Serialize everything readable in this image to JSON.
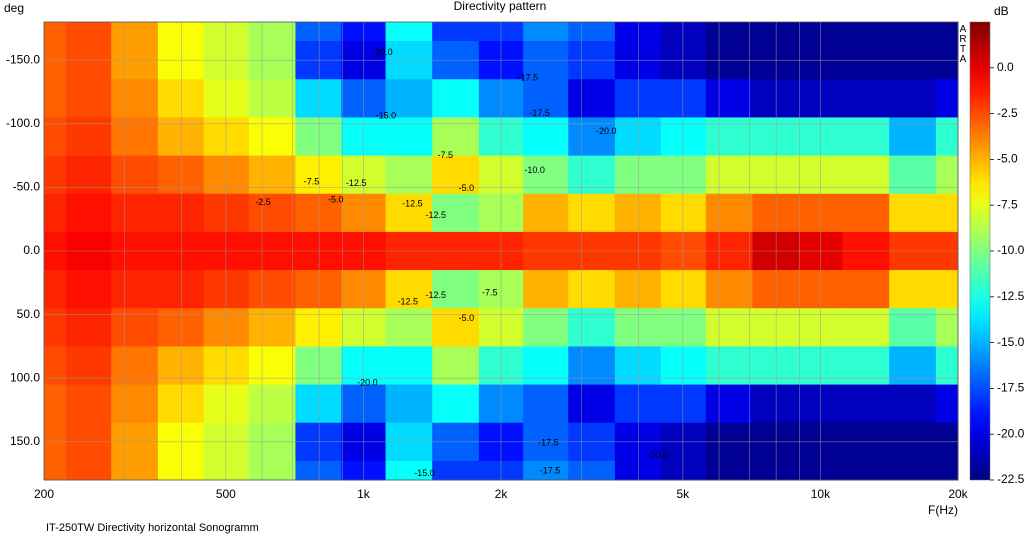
{
  "chart_data": {
    "type": "heatmap",
    "title": "Directivity pattern",
    "ylabel": "deg",
    "xlabel": "F(Hz)",
    "footer": "IT-250TW  Directivity horizontal Sonogramm",
    "brand": "ARTA",
    "colorbar_label": "dB",
    "colormap": "jet",
    "xscale": "log",
    "grid": true,
    "x": [
      200,
      250,
      315,
      400,
      500,
      630,
      800,
      1000,
      1250,
      1600,
      2000,
      2500,
      3150,
      4000,
      5000,
      6300,
      8000,
      10000,
      12500,
      16000,
      20000
    ],
    "y": [
      -180,
      -150,
      -120,
      -90,
      -60,
      -30,
      0,
      30,
      60,
      90,
      120,
      150,
      180
    ],
    "z": [
      [
        -3,
        -2.5,
        -4.5,
        -7,
        -8,
        -9,
        -17,
        -19,
        -13,
        -18,
        -18,
        -16,
        -17,
        -20,
        -21,
        -22,
        -22,
        -22,
        -22,
        -22,
        -22
      ],
      [
        -3,
        -2.5,
        -4.5,
        -7,
        -8,
        -9,
        -18,
        -20,
        -14,
        -17,
        -19,
        -17,
        -18,
        -20,
        -21,
        -22,
        -22,
        -22,
        -22,
        -22,
        -22
      ],
      [
        -3,
        -2.5,
        -4,
        -6,
        -7.5,
        -8.5,
        -14,
        -17,
        -15,
        -13,
        -16,
        -17,
        -20,
        -18,
        -18,
        -20,
        -21,
        -21,
        -21,
        -21,
        -20
      ],
      [
        -2.5,
        -2,
        -3.5,
        -5,
        -6,
        -7,
        -10,
        -13,
        -13,
        -9,
        -12,
        -13,
        -16,
        -14,
        -13,
        -12,
        -12,
        -12,
        -12,
        -15,
        -12
      ],
      [
        -2,
        -1.5,
        -2.5,
        -3,
        -4,
        -5,
        -6.5,
        -8,
        -9,
        -6,
        -8,
        -10,
        -12,
        -10,
        -10,
        -8,
        -8,
        -8,
        -8,
        -11,
        -9
      ],
      [
        -1.5,
        -1,
        -1.5,
        -1.5,
        -2,
        -2.5,
        -3,
        -4,
        -6,
        -10,
        -9,
        -5,
        -6,
        -5,
        -6,
        -4,
        -3,
        -3,
        -3,
        -6,
        -6
      ],
      [
        -1,
        -0.5,
        -1,
        -1,
        -1,
        -1,
        -1,
        -1,
        -1.5,
        -1.5,
        -1.5,
        -2,
        -2,
        -2,
        -2.5,
        -1.5,
        0.5,
        0,
        -1,
        -2,
        -2
      ],
      [
        -1.5,
        -1,
        -1.5,
        -1.5,
        -2,
        -2.5,
        -3,
        -4,
        -6,
        -10,
        -9,
        -5,
        -6,
        -5,
        -6,
        -4,
        -3,
        -3,
        -3,
        -6,
        -6
      ],
      [
        -2,
        -1.5,
        -2.5,
        -3,
        -4,
        -5,
        -6.5,
        -8,
        -9,
        -6,
        -8,
        -10,
        -12,
        -10,
        -10,
        -8,
        -8,
        -8,
        -8,
        -11,
        -9
      ],
      [
        -2.5,
        -2,
        -3.5,
        -5,
        -6,
        -7,
        -10,
        -13,
        -13,
        -9,
        -12,
        -13,
        -16,
        -14,
        -13,
        -12,
        -12,
        -12,
        -12,
        -15,
        -12
      ],
      [
        -3,
        -2.5,
        -4,
        -6,
        -7.5,
        -8.5,
        -14,
        -17,
        -15,
        -13,
        -16,
        -17,
        -20,
        -18,
        -18,
        -20,
        -21,
        -21,
        -21,
        -21,
        -20
      ],
      [
        -3,
        -2.5,
        -4.5,
        -7,
        -8,
        -9,
        -18,
        -20,
        -14,
        -17,
        -19,
        -17,
        -18,
        -20,
        -21,
        -22,
        -22,
        -22,
        -22,
        -22,
        -22
      ],
      [
        -3,
        -2.5,
        -4.5,
        -7,
        -8,
        -9,
        -17,
        -19,
        -13,
        -18,
        -18,
        -16,
        -17,
        -20,
        -21,
        -22,
        -22,
        -22,
        -22,
        -22,
        -22
      ]
    ],
    "xlim": [
      200,
      20000
    ],
    "ylim": [
      -180,
      180
    ],
    "xticks": [
      200,
      500,
      {
        "value": 1000,
        "label": "1k"
      },
      {
        "value": 2000,
        "label": "2k"
      },
      {
        "value": 5000,
        "label": "5k"
      },
      {
        "value": 10000,
        "label": "10k"
      },
      {
        "value": 20000,
        "label": "20k"
      }
    ],
    "xminorticks": [
      300,
      400,
      600,
      700,
      800,
      900,
      3000,
      4000,
      6000,
      7000,
      8000,
      9000
    ],
    "yticks": [
      {
        "value": -150,
        "label": "-150.0"
      },
      {
        "value": -100,
        "label": "-100.0"
      },
      {
        "value": -50,
        "label": "-50.0"
      },
      {
        "value": 0,
        "label": "0.0"
      },
      {
        "value": 50,
        "label": "50.0"
      },
      {
        "value": 100,
        "label": "100.0"
      },
      {
        "value": 150,
        "label": "150.0"
      }
    ],
    "clim": [
      -22.5,
      2.5
    ],
    "cticks": [
      {
        "value": 0,
        "label": "0.0"
      },
      -2.5,
      {
        "value": -5,
        "label": "-5.0"
      },
      -7.5,
      {
        "value": -10,
        "label": "-10.0"
      },
      -12.5,
      {
        "value": -15,
        "label": "-15.0"
      },
      -17.5,
      {
        "value": -20,
        "label": "-20.0"
      },
      -22.5
    ],
    "annotations": [
      {
        "text": "-20.0",
        "x": 1100,
        "y": -156
      },
      {
        "text": "-17.5",
        "x": 2290,
        "y": -136
      },
      {
        "text": "-17.5",
        "x": 2430,
        "y": -108
      },
      {
        "text": "-15.0",
        "x": 1120,
        "y": -106
      },
      {
        "text": "-20.0",
        "x": 3400,
        "y": -94
      },
      {
        "text": "-7.5",
        "x": 1510,
        "y": -75
      },
      {
        "text": "-10.0",
        "x": 2370,
        "y": -63
      },
      {
        "text": "-7.5",
        "x": 770,
        "y": -54
      },
      {
        "text": "-12.5",
        "x": 964,
        "y": -53
      },
      {
        "text": "-5.0",
        "x": 1680,
        "y": -49
      },
      {
        "text": "-5.0",
        "x": 870,
        "y": -40
      },
      {
        "text": "-2.5",
        "x": 603,
        "y": -38
      },
      {
        "text": "-12.5",
        "x": 1280,
        "y": -37
      },
      {
        "text": "-12.5",
        "x": 1440,
        "y": -28
      },
      {
        "text": "-12.5",
        "x": 1250,
        "y": 40
      },
      {
        "text": "-12.5",
        "x": 1440,
        "y": 35
      },
      {
        "text": "-7.5",
        "x": 1890,
        "y": 33
      },
      {
        "text": "-5.0",
        "x": 1680,
        "y": 53
      },
      {
        "text": "-20.0",
        "x": 1020,
        "y": 104
      },
      {
        "text": "-17.5",
        "x": 2540,
        "y": 151
      },
      {
        "text": "-17.5",
        "x": 2560,
        "y": 173
      },
      {
        "text": "-15.0",
        "x": 1360,
        "y": 175
      },
      {
        "text": "-20.0",
        "x": 4400,
        "y": 161
      }
    ]
  }
}
